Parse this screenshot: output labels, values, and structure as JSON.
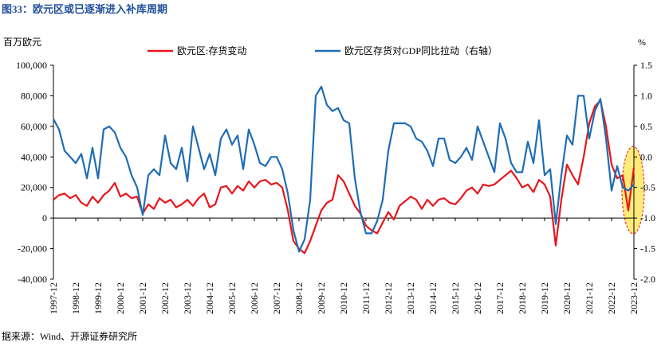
{
  "chart_data": {
    "type": "line",
    "title": "图33：欧元区或已逐渐进入补库周期",
    "source": "据来源：Wind、开源证券研究所",
    "ylabel": "百万欧元",
    "y2label": "%",
    "categories": [
      "1997-12",
      null,
      null,
      null,
      "1998-12",
      null,
      null,
      null,
      "1999-12",
      null,
      null,
      null,
      "2000-12",
      null,
      null,
      null,
      "2001-12",
      null,
      null,
      null,
      "2002-12",
      null,
      null,
      null,
      "2003-12",
      null,
      null,
      null,
      "2004-12",
      null,
      null,
      null,
      "2005-12",
      null,
      null,
      null,
      "2006-12",
      null,
      null,
      null,
      "2007-12",
      null,
      null,
      null,
      "2008-12",
      null,
      null,
      null,
      "2009-12",
      null,
      null,
      null,
      "2010-12",
      null,
      null,
      null,
      "2011-12",
      null,
      null,
      null,
      "2012-12",
      null,
      null,
      null,
      "2013-12",
      null,
      null,
      null,
      "2014-12",
      null,
      null,
      null,
      "2015-12",
      null,
      null,
      null,
      "2016-12",
      null,
      null,
      null,
      "2017-12",
      null,
      null,
      null,
      "2018-12",
      null,
      null,
      null,
      "2019-12",
      null,
      null,
      null,
      "2020-12",
      null,
      null,
      null,
      "2021-12",
      null,
      null,
      null,
      "2022-12",
      null,
      null,
      null,
      "2023-12"
    ],
    "ylim": [
      -40000,
      100000
    ],
    "yticks": [
      {
        "value": -40000,
        "label": "-40,000"
      },
      {
        "value": -20000,
        "label": "-20,000"
      },
      0,
      {
        "value": 20000,
        "label": "20,000"
      },
      {
        "value": 40000,
        "label": "40,000"
      },
      {
        "value": 60000,
        "label": "60,000"
      },
      {
        "value": 80000,
        "label": "80,000"
      },
      {
        "value": 100000,
        "label": "100,000"
      }
    ],
    "y2lim": [
      -2.0,
      1.5
    ],
    "y2ticks": [
      {
        "value": -2.0,
        "label": "-2.0"
      },
      {
        "value": -1.5,
        "label": "-1.5"
      },
      {
        "value": -1.0,
        "label": "-1.0"
      },
      {
        "value": -0.5,
        "label": "-0.5"
      },
      {
        "value": 0.0,
        "label": "0.0"
      },
      {
        "value": 0.5,
        "label": "0.5"
      },
      {
        "value": 1.0,
        "label": "1.0"
      },
      {
        "value": 1.5,
        "label": "1.5"
      }
    ],
    "series": [
      {
        "name": "欧元区:存货变动",
        "color": "#e8161b",
        "values": [
          12000,
          15000,
          16000,
          13000,
          15000,
          10000,
          8000,
          14000,
          10000,
          15000,
          18000,
          23000,
          14000,
          16000,
          13000,
          14000,
          3000,
          9000,
          6000,
          13000,
          10000,
          12000,
          7000,
          9000,
          12000,
          8000,
          13000,
          16000,
          7000,
          9000,
          20000,
          21000,
          16000,
          21000,
          18000,
          24000,
          20000,
          24000,
          25000,
          22000,
          23000,
          20000,
          5000,
          -15000,
          -20000,
          -23000,
          -15000,
          -5000,
          5000,
          10000,
          12000,
          28000,
          24000,
          16000,
          8000,
          3000,
          -5000,
          -8000,
          -10000,
          -3000,
          4000,
          -1000,
          8000,
          11000,
          14000,
          12000,
          6000,
          12000,
          8000,
          12000,
          13000,
          10000,
          9000,
          13000,
          18000,
          20000,
          16000,
          22000,
          21000,
          22000,
          25000,
          28000,
          31000,
          26000,
          20000,
          22000,
          17000,
          25000,
          22000,
          14000,
          -18000,
          12000,
          35000,
          28000,
          22000,
          40000,
          62000,
          73000,
          77000,
          60000,
          35000,
          26000,
          28000,
          5000,
          33000
        ]
      },
      {
        "name": "欧元区存货对GDP同比拉动（右轴）",
        "color": "#1f6db5",
        "axis": "y2",
        "values": [
          0.62,
          0.45,
          0.1,
          0,
          -0.1,
          0.05,
          -0.35,
          0.15,
          -0.35,
          0.45,
          0.5,
          0.4,
          0.15,
          0.0,
          -0.3,
          -0.5,
          -0.95,
          -0.3,
          -0.2,
          -0.3,
          0.35,
          -0.1,
          -0.2,
          0.15,
          -0.4,
          0.5,
          0.15,
          -0.2,
          0.05,
          -0.3,
          0.3,
          0.45,
          0.2,
          0.35,
          -0.2,
          0.45,
          0.2,
          -0.1,
          -0.15,
          0.0,
          0.0,
          -0.2,
          -0.6,
          -1.2,
          -1.55,
          -1.35,
          -0.7,
          1.0,
          1.15,
          0.85,
          0.75,
          0.8,
          0.6,
          0.55,
          -0.35,
          -0.9,
          -1.25,
          -1.25,
          -1.05,
          -0.7,
          0.1,
          0.55,
          0.55,
          0.55,
          0.5,
          0.3,
          0.25,
          0.1,
          -0.15,
          0.3,
          0.3,
          -0.05,
          -0.1,
          0.0,
          0.15,
          -0.05,
          0.5,
          0.25,
          0.0,
          -0.25,
          0.55,
          0.3,
          -0.1,
          -0.25,
          -0.25,
          0.25,
          -0.1,
          0.6,
          -0.3,
          -0.2,
          -1.1,
          -0.3,
          0.35,
          0.2,
          1.0,
          1.0,
          0.3,
          0.75,
          0.95,
          0.3,
          -0.55,
          -0.15,
          -0.5,
          -0.55,
          -0.45
        ]
      }
    ]
  }
}
